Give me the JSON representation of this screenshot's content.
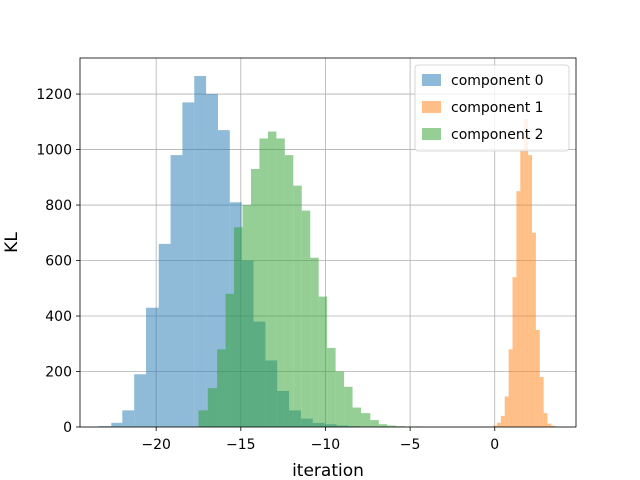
{
  "chart_data": {
    "type": "histogram",
    "title": "",
    "xlabel": "iteration",
    "ylabel": "KL",
    "xlim": [
      -24.5,
      4.8
    ],
    "ylim": [
      0,
      1330
    ],
    "grid": true,
    "legend_position": "upper right",
    "x_ticks": [
      {
        "value": -20,
        "label": "−20"
      },
      {
        "value": -15,
        "label": "−15"
      },
      {
        "value": -10,
        "label": "−10"
      },
      {
        "value": -5,
        "label": "−5"
      },
      {
        "value": 0,
        "label": "0"
      }
    ],
    "y_ticks": [
      {
        "value": 0,
        "label": "0"
      },
      {
        "value": 200,
        "label": "200"
      },
      {
        "value": 400,
        "label": "400"
      },
      {
        "value": 600,
        "label": "600"
      },
      {
        "value": 800,
        "label": "800"
      },
      {
        "value": 1000,
        "label": "1000"
      },
      {
        "value": 1200,
        "label": "1200"
      }
    ],
    "series": [
      {
        "name": "component 0",
        "color": "#1f77b4",
        "opacity": 0.5,
        "bins": [
          [
            -23.4,
            -22.65,
            3
          ],
          [
            -22.65,
            -22.0,
            15
          ],
          [
            -22.0,
            -21.3,
            60
          ],
          [
            -21.3,
            -20.6,
            190
          ],
          [
            -20.6,
            -19.85,
            430
          ],
          [
            -19.85,
            -19.15,
            660
          ],
          [
            -19.15,
            -18.45,
            980
          ],
          [
            -18.45,
            -17.75,
            1170
          ],
          [
            -17.75,
            -17.05,
            1265
          ],
          [
            -17.05,
            -16.35,
            1200
          ],
          [
            -16.35,
            -15.65,
            1070
          ],
          [
            -15.65,
            -14.95,
            810
          ],
          [
            -14.95,
            -14.25,
            600
          ],
          [
            -14.25,
            -13.55,
            380
          ],
          [
            -13.55,
            -12.85,
            240
          ],
          [
            -12.85,
            -12.15,
            130
          ],
          [
            -12.15,
            -11.45,
            60
          ],
          [
            -11.45,
            -10.75,
            30
          ],
          [
            -10.75,
            -10.05,
            15
          ],
          [
            -10.05,
            -9.35,
            10
          ],
          [
            -9.35,
            -8.65,
            5
          ],
          [
            -8.65,
            -7.95,
            3
          ]
        ]
      },
      {
        "name": "component 1",
        "color": "#ff7f0e",
        "opacity": 0.5,
        "bins": [
          [
            -0.1,
            0.13,
            5
          ],
          [
            0.13,
            0.36,
            15
          ],
          [
            0.36,
            0.59,
            40
          ],
          [
            0.59,
            0.82,
            110
          ],
          [
            0.82,
            1.05,
            280
          ],
          [
            1.05,
            1.28,
            540
          ],
          [
            1.28,
            1.51,
            850
          ],
          [
            1.51,
            1.74,
            1000
          ],
          [
            1.74,
            1.97,
            1110
          ],
          [
            1.97,
            2.2,
            980
          ],
          [
            2.2,
            2.43,
            700
          ],
          [
            2.43,
            2.66,
            350
          ],
          [
            2.66,
            2.89,
            180
          ],
          [
            2.89,
            3.12,
            50
          ],
          [
            3.12,
            3.35,
            12
          ],
          [
            3.35,
            3.58,
            4
          ]
        ]
      },
      {
        "name": "component 2",
        "color": "#2ca02c",
        "opacity": 0.5,
        "bins": [
          [
            -17.5,
            -16.95,
            60
          ],
          [
            -16.95,
            -16.4,
            140
          ],
          [
            -16.4,
            -15.9,
            280
          ],
          [
            -15.9,
            -15.4,
            480
          ],
          [
            -15.4,
            -14.9,
            720
          ],
          [
            -14.9,
            -14.4,
            800
          ],
          [
            -14.4,
            -13.9,
            930
          ],
          [
            -13.9,
            -13.4,
            1040
          ],
          [
            -13.4,
            -12.9,
            1065
          ],
          [
            -12.9,
            -12.4,
            1040
          ],
          [
            -12.4,
            -11.9,
            980
          ],
          [
            -11.9,
            -11.4,
            870
          ],
          [
            -11.4,
            -10.9,
            780
          ],
          [
            -10.9,
            -10.4,
            610
          ],
          [
            -10.4,
            -9.9,
            470
          ],
          [
            -9.9,
            -9.4,
            285
          ],
          [
            -9.4,
            -8.9,
            200
          ],
          [
            -8.9,
            -8.4,
            145
          ],
          [
            -8.4,
            -7.9,
            70
          ],
          [
            -7.9,
            -7.35,
            50
          ],
          [
            -7.35,
            -6.85,
            25
          ],
          [
            -6.85,
            -6.35,
            10
          ],
          [
            -6.35,
            -5.85,
            5
          ],
          [
            -5.85,
            -5.3,
            3
          ],
          [
            -4.8,
            -4.3,
            2
          ]
        ]
      }
    ]
  }
}
